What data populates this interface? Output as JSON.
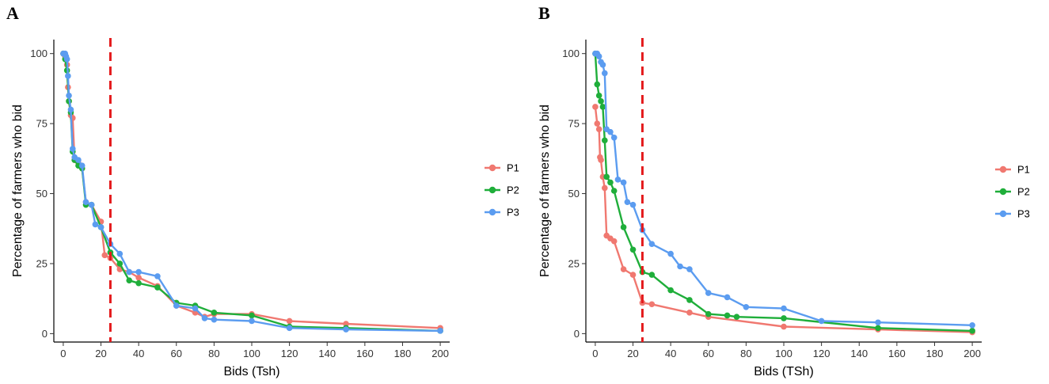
{
  "chart_data": [
    {
      "type": "line",
      "panel_label": "A",
      "xlabel": "Bids (Tsh)",
      "ylabel": "Percentage of farmers who bid",
      "xlim": [
        -5,
        205
      ],
      "ylim": [
        -3,
        105
      ],
      "x_ticks": [
        0,
        20,
        40,
        60,
        80,
        100,
        120,
        140,
        160,
        180,
        200
      ],
      "y_ticks": [
        0,
        25,
        50,
        75,
        100
      ],
      "reference_line": {
        "x": 25,
        "color": "#e41a1c",
        "style": "dashed"
      },
      "legend_position": "right",
      "series": [
        {
          "name": "P1",
          "color": "#f07870",
          "x": [
            0,
            1,
            2,
            2.5,
            3,
            4,
            5,
            6,
            8,
            10,
            12,
            15,
            20,
            22,
            25,
            30,
            35,
            40,
            50,
            60,
            70,
            75,
            80,
            100,
            120,
            150,
            200
          ],
          "y": [
            100,
            99,
            96,
            88,
            83,
            78,
            77,
            62,
            61,
            59,
            47,
            46,
            40,
            28,
            27,
            23,
            22,
            20,
            17,
            10,
            7.5,
            6,
            7,
            7,
            4.5,
            3.5,
            2
          ]
        },
        {
          "name": "P2",
          "color": "#1fae3a",
          "x": [
            0,
            1,
            2,
            3,
            4,
            5,
            6,
            8,
            10,
            12,
            15,
            20,
            25,
            30,
            35,
            40,
            50,
            60,
            70,
            80,
            100,
            120,
            150,
            200
          ],
          "y": [
            100,
            98,
            94,
            83,
            79,
            65,
            62,
            60,
            59,
            46,
            46,
            38,
            29,
            25,
            19,
            18,
            16.5,
            11,
            10,
            7.5,
            6.5,
            2.5,
            2,
            1
          ]
        },
        {
          "name": "P3",
          "color": "#5b9cf0",
          "x": [
            0,
            1,
            1.5,
            2,
            2.5,
            3,
            4,
            5,
            6,
            8,
            10,
            12,
            15,
            17,
            20,
            25,
            30,
            35,
            40,
            50,
            60,
            70,
            75,
            80,
            100,
            120,
            150,
            200
          ],
          "y": [
            100,
            100,
            99,
            98,
            92,
            85,
            80,
            66,
            63,
            62,
            60,
            47,
            46,
            39,
            38,
            32,
            28.5,
            22,
            22,
            20.5,
            10,
            9,
            5.5,
            5,
            4.5,
            2,
            1.5,
            1
          ]
        }
      ]
    },
    {
      "type": "line",
      "panel_label": "B",
      "xlabel": "Bids (TSh)",
      "ylabel": "Percentage of farmers who bid",
      "xlim": [
        -5,
        205
      ],
      "ylim": [
        -3,
        105
      ],
      "x_ticks": [
        0,
        20,
        40,
        60,
        80,
        100,
        120,
        140,
        160,
        180,
        200
      ],
      "y_ticks": [
        0,
        25,
        50,
        75,
        100
      ],
      "reference_line": {
        "x": 25,
        "color": "#e41a1c",
        "style": "dashed"
      },
      "legend_position": "right",
      "series": [
        {
          "name": "P1",
          "color": "#f07870",
          "x": [
            0,
            1,
            2,
            2.5,
            3,
            4,
            5,
            6,
            8,
            10,
            15,
            20,
            25,
            30,
            50,
            60,
            100,
            150,
            200
          ],
          "y": [
            81,
            75,
            73,
            63,
            62,
            56,
            52,
            35,
            34,
            33,
            23,
            21,
            11,
            10.5,
            7.5,
            6,
            2.5,
            1.5,
            0.5
          ]
        },
        {
          "name": "P2",
          "color": "#1fae3a",
          "x": [
            0,
            1,
            2,
            3,
            4,
            5,
            6,
            8,
            10,
            15,
            20,
            25,
            30,
            40,
            50,
            60,
            70,
            75,
            100,
            150,
            200
          ],
          "y": [
            100,
            89,
            85,
            83,
            81,
            69,
            56,
            54,
            51,
            38,
            30,
            22,
            21,
            15.5,
            12,
            7,
            6.5,
            6,
            5.5,
            2,
            1
          ]
        },
        {
          "name": "P3",
          "color": "#5b9cf0",
          "x": [
            0,
            1,
            2,
            3,
            4,
            5,
            6,
            8,
            10,
            12,
            15,
            17,
            20,
            25,
            30,
            40,
            45,
            50,
            60,
            70,
            80,
            100,
            120,
            150,
            200
          ],
          "y": [
            100,
            100,
            99,
            97,
            96,
            93,
            73,
            72,
            70,
            55,
            54,
            47,
            46,
            37,
            32,
            28.5,
            24,
            23,
            14.5,
            13,
            9.5,
            9,
            4.5,
            4,
            3
          ]
        }
      ]
    }
  ]
}
